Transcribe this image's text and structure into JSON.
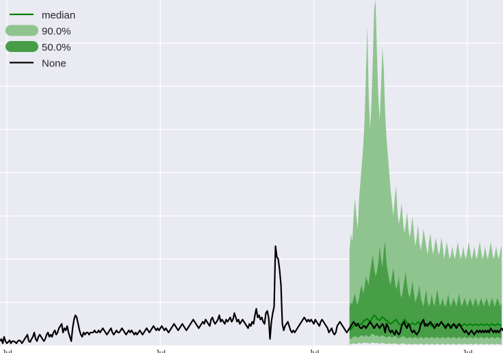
{
  "chart_data": {
    "type": "area",
    "title": "",
    "xlabel": "",
    "ylabel": "",
    "x_tick_labels": [
      "Jul",
      "Jul",
      "Jul",
      "Jul"
    ],
    "x_ticks": [
      5,
      117,
      229,
      341
    ],
    "xlim": [
      0,
      367
    ],
    "ylim": [
      0,
      8
    ],
    "grid": true,
    "legend_position": "top-left",
    "legend": [
      {
        "label": "median",
        "kind": "line",
        "color": "#008000"
      },
      {
        "label": "90.0%",
        "kind": "band",
        "color": "#8fc48f"
      },
      {
        "label": "50.0%",
        "kind": "band",
        "color": "#479e47"
      },
      {
        "label": "None",
        "kind": "line",
        "color": "#000000"
      }
    ],
    "observed": {
      "name": "None",
      "color": "#000000",
      "x_start": 0,
      "values": [
        0.1,
        0.15,
        0.05,
        0.2,
        0.1,
        0.05,
        0.08,
        0.12,
        0.05,
        0.1,
        0.1,
        0.08,
        0.05,
        0.1,
        0.12,
        0.1,
        0.05,
        0.1,
        0.15,
        0.2,
        0.25,
        0.1,
        0.08,
        0.15,
        0.2,
        0.3,
        0.15,
        0.1,
        0.2,
        0.25,
        0.2,
        0.15,
        0.1,
        0.15,
        0.25,
        0.3,
        0.2,
        0.25,
        0.2,
        0.3,
        0.35,
        0.25,
        0.3,
        0.4,
        0.45,
        0.5,
        0.3,
        0.4,
        0.35,
        0.45,
        0.3,
        0.2,
        0.1,
        0.4,
        0.6,
        0.7,
        0.65,
        0.5,
        0.35,
        0.25,
        0.2,
        0.3,
        0.25,
        0.3,
        0.3,
        0.25,
        0.3,
        0.3,
        0.3,
        0.35,
        0.3,
        0.3,
        0.35,
        0.3,
        0.35,
        0.4,
        0.35,
        0.3,
        0.25,
        0.3,
        0.35,
        0.4,
        0.3,
        0.25,
        0.3,
        0.35,
        0.3,
        0.3,
        0.35,
        0.4,
        0.35,
        0.3,
        0.25,
        0.3,
        0.35,
        0.3,
        0.35,
        0.3,
        0.25,
        0.3,
        0.25,
        0.3,
        0.35,
        0.3,
        0.25,
        0.3,
        0.35,
        0.4,
        0.35,
        0.3,
        0.35,
        0.4,
        0.45,
        0.4,
        0.35,
        0.4,
        0.35,
        0.4,
        0.45,
        0.4,
        0.35,
        0.4,
        0.35,
        0.3,
        0.35,
        0.4,
        0.45,
        0.5,
        0.45,
        0.4,
        0.35,
        0.4,
        0.45,
        0.5,
        0.45,
        0.4,
        0.35,
        0.4,
        0.45,
        0.5,
        0.55,
        0.6,
        0.55,
        0.5,
        0.45,
        0.4,
        0.45,
        0.5,
        0.55,
        0.5,
        0.6,
        0.55,
        0.5,
        0.45,
        0.6,
        0.65,
        0.55,
        0.5,
        0.55,
        0.6,
        0.7,
        0.55,
        0.6,
        0.55,
        0.5,
        0.6,
        0.55,
        0.6,
        0.65,
        0.55,
        0.6,
        0.75,
        0.65,
        0.55,
        0.6,
        0.5,
        0.55,
        0.6,
        0.55,
        0.5,
        0.45,
        0.4,
        0.5,
        0.45,
        0.55,
        0.5,
        0.7,
        0.85,
        0.65,
        0.7,
        0.6,
        0.65,
        0.55,
        0.5,
        0.75,
        0.8,
        0.65,
        0.15,
        0.55,
        0.75,
        0.9,
        2.3,
        2.05,
        2.0,
        1.75,
        1.4,
        0.5,
        0.35,
        0.45,
        0.5,
        0.55,
        0.45,
        0.35,
        0.3,
        0.35,
        0.3,
        0.35,
        0.4,
        0.45,
        0.5,
        0.55,
        0.6,
        0.65,
        0.6,
        0.55,
        0.6,
        0.55,
        0.6,
        0.55,
        0.5,
        0.6,
        0.55,
        0.5,
        0.45,
        0.55,
        0.6,
        0.55,
        0.5,
        0.45,
        0.4,
        0.3,
        0.35,
        0.4,
        0.3,
        0.25,
        0.3,
        0.45,
        0.5,
        0.55,
        0.5,
        0.45,
        0.4,
        0.35,
        0.3,
        0.35,
        0.4,
        0.45,
        0.5,
        0.55,
        0.5,
        0.45,
        0.5,
        0.45,
        0.4,
        0.4,
        0.45,
        0.45,
        0.4,
        0.45,
        0.5,
        0.55,
        0.5,
        0.45,
        0.4,
        0.45,
        0.5,
        0.45,
        0.4,
        0.45,
        0.5,
        0.45,
        0.3,
        0.5,
        0.45,
        0.35,
        0.3,
        0.35,
        0.3,
        0.25,
        0.35,
        0.3,
        0.25,
        0.3,
        0.45,
        0.5,
        0.55,
        0.45,
        0.4,
        0.5,
        0.45,
        0.35,
        0.3,
        0.35,
        0.3,
        0.25,
        0.3,
        0.35,
        0.5,
        0.55,
        0.6,
        0.45,
        0.5,
        0.45,
        0.5,
        0.55,
        0.5,
        0.45,
        0.4,
        0.45,
        0.5,
        0.45,
        0.5,
        0.55,
        0.5,
        0.45,
        0.4,
        0.45,
        0.5,
        0.45,
        0.4,
        0.45,
        0.5,
        0.45,
        0.4,
        0.45,
        0.5,
        0.45,
        0.4,
        0.35,
        0.3,
        0.35,
        0.3,
        0.25,
        0.3,
        0.35,
        0.3,
        0.25,
        0.3,
        0.35,
        0.3,
        0.35,
        0.3,
        0.35,
        0.3,
        0.35,
        0.3,
        0.35,
        0.3,
        0.4,
        0.35,
        0.3,
        0.35,
        0.3,
        0.35,
        0.3,
        0.35,
        0.4,
        0.35,
        0.3,
        0.35,
        0.4,
        0.35,
        0.3,
        0.35,
        0.3,
        0.35,
        0.4,
        0.35,
        0.3,
        0.35
      ]
    },
    "forecast": {
      "x_start": 255,
      "median": {
        "name": "median",
        "color": "#008000",
        "values": [
          0.35,
          0.38,
          0.42,
          0.45,
          0.48,
          0.5,
          0.52,
          0.5,
          0.48,
          0.5,
          0.55,
          0.58,
          0.6,
          0.62,
          0.58,
          0.55,
          0.6,
          0.65,
          0.7,
          0.68,
          0.62,
          0.6,
          0.58,
          0.62,
          0.66,
          0.64,
          0.6,
          0.58,
          0.55,
          0.52,
          0.5,
          0.52,
          0.55,
          0.58,
          0.6,
          0.55,
          0.5,
          0.48,
          0.5,
          0.55,
          0.6,
          0.58,
          0.52,
          0.5,
          0.48,
          0.5,
          0.52,
          0.5,
          0.48,
          0.5,
          0.55,
          0.52,
          0.48,
          0.5,
          0.52,
          0.48,
          0.45,
          0.5,
          0.52,
          0.48,
          0.45,
          0.48,
          0.5,
          0.48,
          0.45,
          0.48,
          0.5,
          0.52,
          0.5,
          0.48,
          0.45,
          0.48,
          0.5,
          0.48,
          0.46,
          0.48,
          0.5,
          0.48,
          0.46,
          0.48,
          0.5,
          0.48,
          0.45,
          0.48,
          0.5,
          0.48,
          0.46,
          0.48,
          0.5,
          0.48,
          0.46,
          0.48,
          0.5,
          0.48,
          0.46,
          0.48,
          0.5,
          0.48,
          0.46,
          0.48,
          0.5,
          0.48,
          0.46,
          0.48,
          0.5,
          0.48,
          0.46,
          0.48,
          0.5,
          0.48,
          0.46,
          0.48
        ]
      },
      "band_50": {
        "name": "50.0%",
        "color": "#479e47",
        "lower": [
          0.15,
          0.16,
          0.18,
          0.2,
          0.22,
          0.2,
          0.18,
          0.2,
          0.22,
          0.24,
          0.22,
          0.2,
          0.25,
          0.22,
          0.2,
          0.22,
          0.25,
          0.28,
          0.25,
          0.22,
          0.24,
          0.22,
          0.2,
          0.22,
          0.24,
          0.22,
          0.2,
          0.18,
          0.2,
          0.22,
          0.2,
          0.18,
          0.2,
          0.22,
          0.2,
          0.18,
          0.16,
          0.18,
          0.2,
          0.22,
          0.2,
          0.18,
          0.16,
          0.18,
          0.2,
          0.18,
          0.16,
          0.18,
          0.2,
          0.18,
          0.16,
          0.18,
          0.2,
          0.18,
          0.16,
          0.18,
          0.2,
          0.18,
          0.16,
          0.18,
          0.2,
          0.18,
          0.16,
          0.18,
          0.2,
          0.18,
          0.16,
          0.18,
          0.2,
          0.18,
          0.16,
          0.18,
          0.2,
          0.18,
          0.16,
          0.18,
          0.2,
          0.18,
          0.16,
          0.18,
          0.2,
          0.18,
          0.16,
          0.18,
          0.2,
          0.18,
          0.16,
          0.18,
          0.2,
          0.18,
          0.16,
          0.18,
          0.2,
          0.18,
          0.16,
          0.18,
          0.2,
          0.18,
          0.16,
          0.18,
          0.2,
          0.18,
          0.16,
          0.18,
          0.2,
          0.18,
          0.16,
          0.18,
          0.2,
          0.18,
          0.16,
          0.18
        ],
        "upper": [
          0.9,
          1.0,
          0.95,
          1.1,
          1.2,
          1.0,
          0.95,
          1.1,
          1.3,
          1.4,
          1.2,
          1.35,
          1.6,
          1.5,
          1.4,
          1.7,
          1.9,
          2.1,
          1.8,
          1.6,
          1.7,
          1.9,
          2.3,
          2.0,
          1.8,
          2.2,
          2.4,
          1.9,
          1.7,
          1.5,
          1.4,
          1.6,
          1.8,
          1.5,
          1.3,
          1.4,
          1.6,
          1.2,
          1.1,
          1.3,
          1.5,
          1.7,
          1.4,
          1.2,
          1.1,
          1.3,
          1.5,
          1.2,
          1.0,
          1.1,
          1.2,
          1.4,
          1.1,
          1.0,
          0.9,
          1.1,
          1.3,
          1.0,
          0.9,
          1.0,
          1.2,
          1.0,
          0.9,
          1.1,
          1.3,
          1.1,
          0.9,
          1.0,
          1.1,
          0.95,
          0.9,
          1.0,
          1.2,
          1.0,
          0.9,
          1.0,
          1.1,
          1.0,
          0.9,
          1.05,
          1.2,
          1.0,
          0.9,
          1.0,
          1.1,
          1.0,
          0.9,
          1.0,
          1.1,
          1.0,
          0.9,
          1.0,
          1.1,
          1.0,
          0.9,
          1.0,
          1.1,
          1.0,
          0.9,
          1.0,
          1.1,
          1.0,
          0.9,
          1.0,
          1.1,
          1.0,
          0.9,
          1.0,
          1.1,
          1.0,
          0.9,
          1.0
        ]
      },
      "band_90": {
        "name": "90.0%",
        "color": "#8fc48f",
        "lower": [
          0.02,
          0.03,
          0.04,
          0.05,
          0.04,
          0.03,
          0.05,
          0.06,
          0.05,
          0.04,
          0.06,
          0.07,
          0.05,
          0.06,
          0.05,
          0.04,
          0.06,
          0.07,
          0.06,
          0.05,
          0.06,
          0.05,
          0.04,
          0.05,
          0.06,
          0.05,
          0.04,
          0.03,
          0.04,
          0.05,
          0.04,
          0.03,
          0.04,
          0.05,
          0.04,
          0.03,
          0.02,
          0.03,
          0.04,
          0.05,
          0.04,
          0.03,
          0.02,
          0.03,
          0.04,
          0.03,
          0.02,
          0.03,
          0.04,
          0.03,
          0.02,
          0.03,
          0.04,
          0.03,
          0.02,
          0.03,
          0.04,
          0.03,
          0.02,
          0.03,
          0.04,
          0.03,
          0.02,
          0.03,
          0.04,
          0.03,
          0.02,
          0.03,
          0.04,
          0.03,
          0.02,
          0.03,
          0.04,
          0.03,
          0.02,
          0.03,
          0.04,
          0.03,
          0.02,
          0.03,
          0.04,
          0.03,
          0.02,
          0.03,
          0.04,
          0.03,
          0.02,
          0.03,
          0.04,
          0.03,
          0.02,
          0.03,
          0.04,
          0.03,
          0.02,
          0.03,
          0.04,
          0.03,
          0.02,
          0.03,
          0.04,
          0.03,
          0.02,
          0.03,
          0.04,
          0.03,
          0.02,
          0.03,
          0.04,
          0.03,
          0.02,
          0.03
        ],
        "upper": [
          2.2,
          2.6,
          2.4,
          3.0,
          3.4,
          3.0,
          2.7,
          3.4,
          3.8,
          4.2,
          4.6,
          5.2,
          6.3,
          7.4,
          5.8,
          5.0,
          5.6,
          6.6,
          7.8,
          8.0,
          6.8,
          5.8,
          5.2,
          6.0,
          6.9,
          6.4,
          5.4,
          4.8,
          4.4,
          4.0,
          3.6,
          3.3,
          3.0,
          3.4,
          3.7,
          3.1,
          2.8,
          3.0,
          3.3,
          2.9,
          2.6,
          2.8,
          3.1,
          2.7,
          2.5,
          2.7,
          3.0,
          2.6,
          2.3,
          2.5,
          2.8,
          2.4,
          2.2,
          2.4,
          2.7,
          2.5,
          2.3,
          2.1,
          2.4,
          2.6,
          2.3,
          2.1,
          2.3,
          2.5,
          2.3,
          2.1,
          2.2,
          2.5,
          2.3,
          2.0,
          2.2,
          2.4,
          2.2,
          2.0,
          2.1,
          2.3,
          2.1,
          2.0,
          2.2,
          2.4,
          2.2,
          2.0,
          2.1,
          2.3,
          2.1,
          2.0,
          2.2,
          2.4,
          2.2,
          2.0,
          2.1,
          2.3,
          2.1,
          2.0,
          2.2,
          2.4,
          2.2,
          2.0,
          2.1,
          2.3,
          2.1,
          2.0,
          2.2,
          2.4,
          2.2,
          2.0,
          2.1,
          2.3,
          2.1,
          2.0,
          2.2,
          2.3
        ]
      }
    }
  }
}
